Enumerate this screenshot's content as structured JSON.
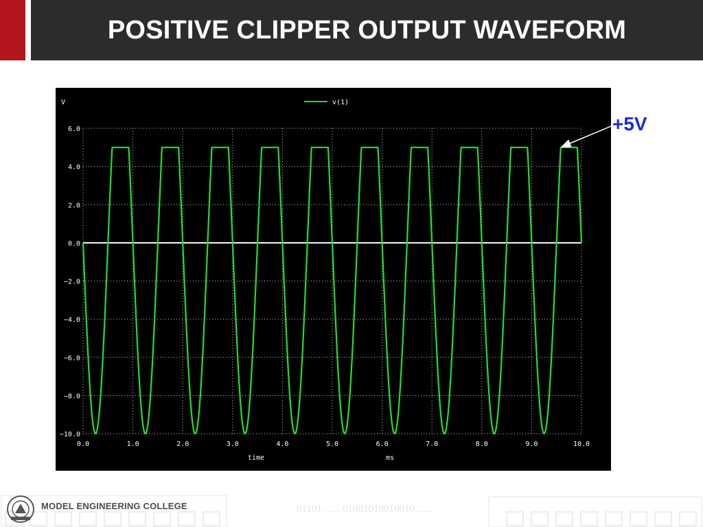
{
  "slide": {
    "title": "POSITIVE CLIPPER OUTPUT WAVEFORM",
    "annotation": "+5V"
  },
  "footer": {
    "college": "MODEL ENGINEERING COLLEGE",
    "binary_watermark": "01101 ...... 01001010010010 ......"
  },
  "colors": {
    "header_bar": "#2c2c2c",
    "header_accent": "#b2151b",
    "plot_background": "#000000",
    "trace": "#22e02a",
    "zero_line": "#ffffff",
    "grid": "#c8c8c8",
    "annotation": "#1a2bd6"
  },
  "chart_data": {
    "type": "line",
    "ylabel": "V",
    "xlabel": "time",
    "xunit": "ms",
    "legend": [
      "v(1)"
    ],
    "legend_position": "top-center",
    "xlim": [
      0,
      10
    ],
    "ylim": [
      -10,
      6
    ],
    "x_ticks": [
      "0.0",
      "1.0",
      "2.0",
      "3.0",
      "4.0",
      "5.0",
      "6.0",
      "7.0",
      "8.0",
      "9.0",
      "10.0"
    ],
    "y_ticks": [
      "6.0",
      "4.0",
      "2.0",
      "0.0",
      "−2.0",
      "−4.0",
      "−6.0",
      "−8.0",
      "−10.0"
    ],
    "grid": true,
    "series": [
      {
        "name": "v(1)",
        "signal": "sine clipped at +5 V",
        "amplitude_peak": -10,
        "clip_level": 5,
        "frequency_khz": 1,
        "cycles": 10
      }
    ]
  }
}
